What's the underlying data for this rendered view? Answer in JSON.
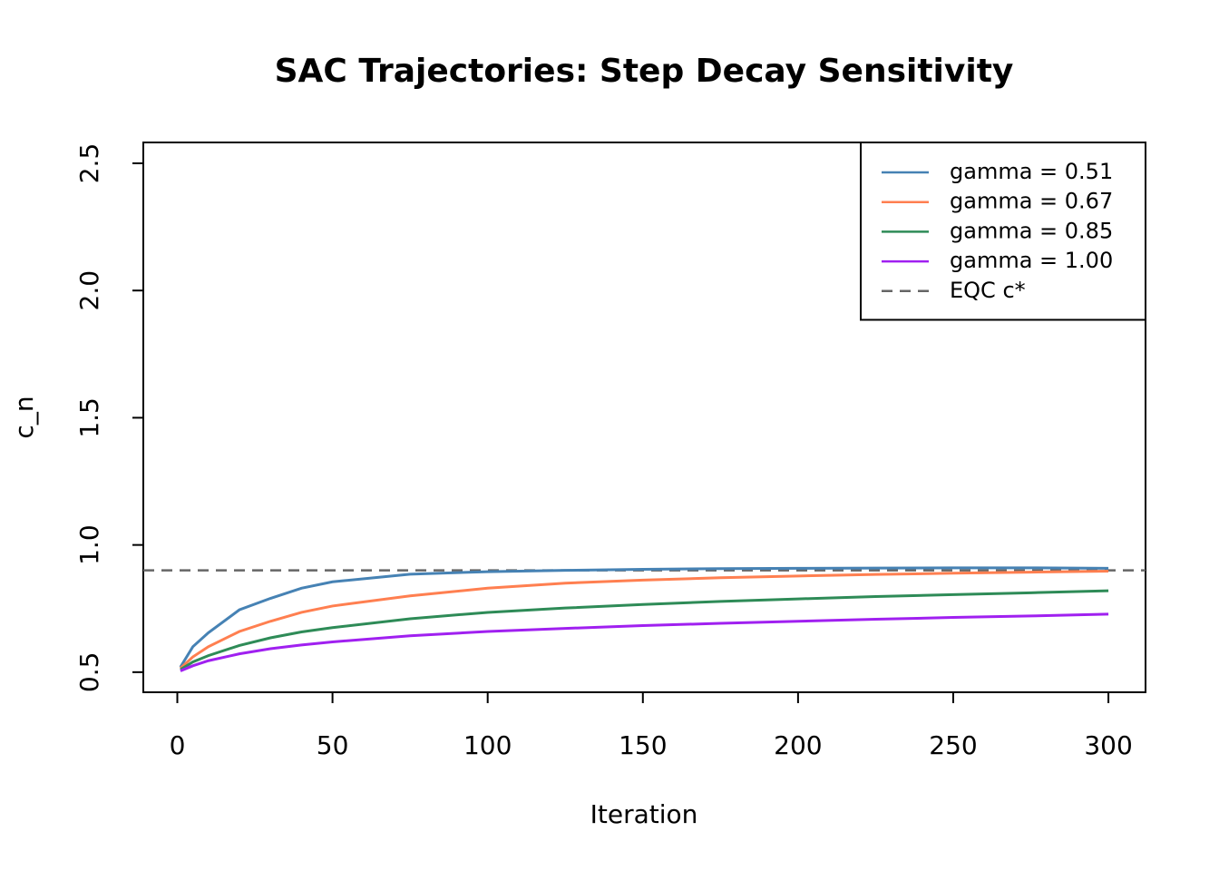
{
  "chart_data": {
    "type": "line",
    "title": "SAC Trajectories: Step Decay Sensitivity",
    "x_label": "Iteration",
    "y_label": "c_n",
    "x": [
      1,
      5,
      10,
      20,
      30,
      40,
      50,
      75,
      100,
      125,
      150,
      175,
      200,
      225,
      250,
      275,
      300
    ],
    "series": [
      {
        "name": "gamma = 0.51",
        "color": "#4682b4",
        "values": [
          0.52,
          0.6,
          0.655,
          0.745,
          0.79,
          0.83,
          0.855,
          0.885,
          0.895,
          0.9,
          0.904,
          0.907,
          0.908,
          0.909,
          0.91,
          0.91,
          0.908
        ]
      },
      {
        "name": "gamma = 0.67",
        "color": "#ff7f50",
        "values": [
          0.515,
          0.56,
          0.6,
          0.66,
          0.7,
          0.735,
          0.76,
          0.8,
          0.83,
          0.85,
          0.862,
          0.871,
          0.878,
          0.884,
          0.889,
          0.893,
          0.897
        ]
      },
      {
        "name": "gamma = 0.85",
        "color": "#2e8b57",
        "values": [
          0.51,
          0.54,
          0.565,
          0.605,
          0.635,
          0.658,
          0.675,
          0.71,
          0.735,
          0.752,
          0.766,
          0.778,
          0.788,
          0.797,
          0.805,
          0.812,
          0.82
        ]
      },
      {
        "name": "gamma = 1.00",
        "color": "#a020f0",
        "values": [
          0.505,
          0.525,
          0.545,
          0.572,
          0.592,
          0.607,
          0.619,
          0.643,
          0.66,
          0.672,
          0.683,
          0.692,
          0.7,
          0.708,
          0.715,
          0.721,
          0.728
        ]
      }
    ],
    "reference_lines": [
      {
        "name": "EQC c*",
        "value": 0.9,
        "color": "#666666",
        "dashed": true
      }
    ],
    "xlim": [
      -10.96,
      311.96
    ],
    "xticks": [
      0,
      50,
      100,
      150,
      200,
      250,
      300
    ],
    "ylim": [
      0.421,
      2.582
    ],
    "yticks": [
      0.5,
      {
        "value": 1,
        "label": "1.0"
      },
      1.5,
      {
        "value": 2,
        "label": "2.0"
      },
      2.5
    ],
    "legend": "top-right"
  }
}
